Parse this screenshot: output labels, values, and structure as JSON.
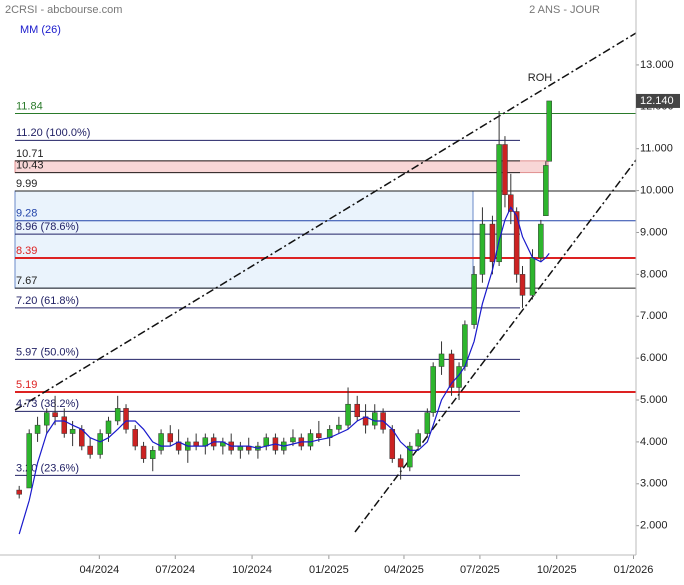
{
  "chart_data": {
    "type": "candlestick",
    "title": "2CRSI - abcbourse.com",
    "subtitle": "2 ANS - JOUR",
    "annotation": "ROH",
    "up_color": "#2db52d",
    "down_color": "#cc2222",
    "x": [
      "2023-12-27",
      "2024-01-08",
      "2024-01-18",
      "2024-01-29",
      "2024-02-08",
      "2024-02-19",
      "2024-02-29",
      "2024-03-11",
      "2024-03-21",
      "2024-04-02",
      "2024-04-12",
      "2024-04-23",
      "2024-05-03",
      "2024-05-14",
      "2024-05-24",
      "2024-06-04",
      "2024-06-14",
      "2024-06-25",
      "2024-07-05",
      "2024-07-16",
      "2024-07-26",
      "2024-08-06",
      "2024-08-16",
      "2024-08-27",
      "2024-09-06",
      "2024-09-17",
      "2024-09-27",
      "2024-10-08",
      "2024-10-18",
      "2024-10-29",
      "2024-11-08",
      "2024-11-19",
      "2024-11-29",
      "2024-12-10",
      "2024-12-20",
      "2025-01-02",
      "2025-01-13",
      "2025-01-24",
      "2025-02-04",
      "2025-02-14",
      "2025-02-25",
      "2025-03-07",
      "2025-03-18",
      "2025-03-28",
      "2025-04-08",
      "2025-04-18",
      "2025-04-29",
      "2025-05-06",
      "2025-05-16",
      "2025-05-28",
      "2025-06-06",
      "2025-06-13",
      "2025-06-24",
      "2025-07-04",
      "2025-07-16",
      "2025-07-24",
      "2025-07-31",
      "2025-08-07",
      "2025-08-14",
      "2025-08-21",
      "2025-09-02",
      "2025-09-12",
      "2025-09-18",
      "2025-09-22"
    ],
    "open": [
      2.85,
      2.9,
      4.2,
      4.4,
      4.7,
      4.6,
      4.2,
      4.3,
      3.9,
      3.7,
      4.2,
      4.5,
      4.8,
      4.3,
      3.9,
      3.6,
      3.8,
      4.2,
      4.0,
      3.8,
      4.0,
      3.9,
      4.1,
      3.9,
      4.0,
      3.8,
      3.9,
      3.8,
      3.9,
      4.1,
      3.8,
      4.0,
      4.1,
      3.9,
      4.2,
      4.1,
      4.3,
      4.4,
      4.9,
      4.6,
      4.4,
      4.7,
      4.3,
      3.6,
      3.4,
      3.9,
      4.2,
      4.7,
      5.8,
      6.1,
      5.3,
      5.8,
      6.8,
      8.0,
      9.2,
      8.3,
      11.1,
      9.9,
      9.5,
      8.0,
      7.5,
      8.4,
      9.4,
      10.7
    ],
    "high": [
      2.95,
      4.3,
      4.6,
      4.8,
      5.1,
      4.8,
      4.5,
      4.4,
      4.1,
      4.3,
      4.6,
      5.1,
      4.9,
      4.4,
      4.0,
      3.9,
      4.3,
      4.4,
      4.3,
      4.1,
      4.2,
      4.2,
      4.2,
      4.1,
      4.2,
      4.0,
      4.1,
      4.0,
      4.2,
      4.2,
      4.1,
      4.3,
      4.2,
      4.3,
      4.5,
      4.4,
      4.6,
      5.3,
      5.1,
      4.9,
      4.9,
      4.8,
      4.4,
      3.7,
      4.0,
      4.3,
      4.8,
      5.9,
      6.4,
      6.2,
      5.9,
      6.9,
      8.2,
      9.6,
      9.4,
      11.9,
      11.3,
      10.4,
      9.6,
      8.2,
      8.6,
      9.3,
      10.7,
      12.14
    ],
    "low": [
      2.65,
      2.9,
      4.0,
      4.2,
      4.4,
      4.1,
      3.9,
      3.8,
      3.6,
      3.6,
      4.0,
      4.4,
      4.2,
      3.8,
      3.5,
      3.3,
      3.7,
      3.9,
      3.7,
      3.5,
      3.8,
      3.7,
      3.8,
      3.7,
      3.7,
      3.6,
      3.7,
      3.6,
      3.8,
      3.7,
      3.7,
      3.9,
      3.8,
      3.8,
      4.0,
      3.9,
      4.2,
      4.3,
      4.5,
      4.2,
      4.3,
      4.2,
      3.5,
      3.1,
      3.3,
      3.8,
      4.1,
      4.6,
      5.6,
      5.1,
      5.0,
      5.7,
      6.7,
      7.8,
      8.0,
      8.2,
      9.6,
      9.2,
      7.8,
      7.2,
      7.4,
      8.3,
      9.4,
      10.7
    ],
    "close": [
      2.75,
      4.2,
      4.4,
      4.7,
      4.6,
      4.2,
      4.3,
      3.9,
      3.7,
      4.2,
      4.5,
      4.8,
      4.3,
      3.9,
      3.6,
      3.8,
      4.2,
      4.0,
      3.8,
      4.0,
      3.9,
      4.1,
      3.9,
      4.0,
      3.8,
      3.9,
      3.8,
      3.9,
      4.1,
      3.8,
      4.0,
      4.1,
      3.9,
      4.2,
      4.1,
      4.3,
      4.4,
      4.9,
      4.6,
      4.4,
      4.7,
      4.3,
      3.6,
      3.4,
      3.9,
      4.2,
      4.7,
      5.8,
      6.1,
      5.3,
      5.8,
      6.8,
      8.0,
      9.2,
      8.3,
      11.1,
      9.9,
      9.5,
      8.0,
      7.5,
      8.4,
      9.2,
      10.6,
      12.14
    ],
    "series": [
      {
        "name": "MM (26)",
        "color": "#1a1acc",
        "values": [
          1.8,
          2.6,
          3.5,
          4.2,
          4.5,
          4.5,
          4.4,
          4.3,
          4.1,
          4.0,
          4.1,
          4.3,
          4.5,
          4.5,
          4.3,
          4.0,
          3.9,
          3.9,
          4.0,
          3.9,
          3.9,
          3.9,
          4.0,
          4.0,
          3.9,
          3.9,
          3.9,
          3.85,
          3.9,
          3.95,
          3.9,
          3.95,
          4.0,
          4.0,
          4.05,
          4.1,
          4.2,
          4.3,
          4.5,
          4.6,
          4.5,
          4.5,
          4.3,
          4.0,
          3.8,
          3.8,
          4.0,
          4.4,
          5.0,
          5.4,
          5.6,
          5.8,
          6.4,
          7.3,
          8.1,
          8.8,
          9.3,
          9.6,
          9.4,
          8.9,
          8.4,
          8.3,
          8.4,
          8.5
        ]
      }
    ],
    "levels": [
      {
        "value": 11.84,
        "label": "11.84",
        "color": "#2a7a2a"
      },
      {
        "value": 11.2,
        "label": "11.20  (100.0%)",
        "color": "#222266"
      },
      {
        "value": 10.71,
        "label": "10.71",
        "color": "#222222"
      },
      {
        "value": 10.43,
        "label": "10.43",
        "color": "#222222"
      },
      {
        "value": 9.99,
        "label": "9.99",
        "color": "#222222"
      },
      {
        "value": 9.28,
        "label": "9.28",
        "color": "#2244aa"
      },
      {
        "value": 8.96,
        "label": "8.96  (78.6%)",
        "color": "#222266"
      },
      {
        "value": 8.39,
        "label": "8.39",
        "color": "#dd2222"
      },
      {
        "value": 7.67,
        "label": "7.67",
        "color": "#222222"
      },
      {
        "value": 7.2,
        "label": "7.20  (61.8%)",
        "color": "#222266"
      },
      {
        "value": 5.97,
        "label": "5.97  (50.0%)",
        "color": "#222266"
      },
      {
        "value": 5.19,
        "label": "5.19",
        "color": "#dd2222"
      },
      {
        "value": 4.73,
        "label": "4.73  (38.2%)",
        "color": "#222266"
      },
      {
        "value": 3.2,
        "label": "3.20  (23.6%)",
        "color": "#222266"
      }
    ],
    "last_price": {
      "value": 12.14,
      "label": "12.140"
    },
    "xlim": [
      "2023-12-04",
      "2026-01-04"
    ],
    "xticks": [
      {
        "value": "2024-04-01",
        "label": "04/2024"
      },
      {
        "value": "2024-07-01",
        "label": "07/2024"
      },
      {
        "value": "2024-10-01",
        "label": "10/2024"
      },
      {
        "value": "2025-01-01",
        "label": "01/2025"
      },
      {
        "value": "2025-04-01",
        "label": "04/2025"
      },
      {
        "value": "2025-07-01",
        "label": "07/2025"
      },
      {
        "value": "2025-10-01",
        "label": "10/2025"
      },
      {
        "value": "2026-01-01",
        "label": "01/2026"
      }
    ],
    "ylim": [
      1.3,
      14.55
    ],
    "yticks": [
      {
        "value": 2,
        "label": "2.000"
      },
      {
        "value": 3,
        "label": "3.000"
      },
      {
        "value": 4,
        "label": "4.000"
      },
      {
        "value": 5,
        "label": "5.000"
      },
      {
        "value": 6,
        "label": "6.000"
      },
      {
        "value": 7,
        "label": "7.000"
      },
      {
        "value": 8,
        "label": "8.000"
      },
      {
        "value": 9,
        "label": "9.000"
      },
      {
        "value": 10,
        "label": "10.000"
      },
      {
        "value": 11,
        "label": "11.000"
      },
      {
        "value": 12,
        "label": "12.000"
      },
      {
        "value": 13,
        "label": "13.000"
      }
    ]
  }
}
